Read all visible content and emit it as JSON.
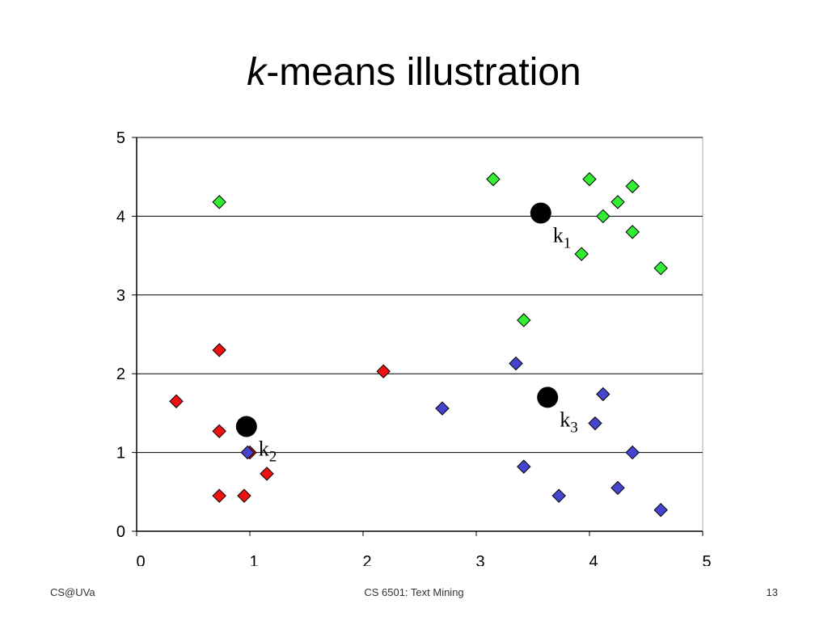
{
  "slide": {
    "title_italic": "k",
    "title_rest": "-means illustration",
    "footer_left": "CS@UVa",
    "footer_center": "CS 6501: Text Mining",
    "footer_right": "13"
  },
  "chart_data": {
    "type": "scatter",
    "xlim": [
      0,
      5
    ],
    "ylim": [
      0,
      5
    ],
    "x_ticks": [
      "0",
      "1",
      "2",
      "3",
      "4",
      "5"
    ],
    "y_ticks": [
      "0",
      "1",
      "2",
      "3",
      "4",
      "5"
    ],
    "grid": "horizontal",
    "series": [
      {
        "color": "#33ee33",
        "points": [
          [
            0.73,
            4.18
          ],
          [
            3.15,
            4.47
          ],
          [
            4.0,
            4.47
          ],
          [
            4.25,
            4.18
          ],
          [
            4.38,
            4.38
          ],
          [
            4.12,
            4.0
          ],
          [
            4.38,
            3.8
          ],
          [
            3.93,
            3.52
          ],
          [
            4.63,
            3.34
          ],
          [
            3.42,
            2.68
          ]
        ]
      },
      {
        "color": "#ee1111",
        "points": [
          [
            0.35,
            1.65
          ],
          [
            0.73,
            2.3
          ],
          [
            0.73,
            1.27
          ],
          [
            1.0,
            1.0
          ],
          [
            0.73,
            0.45
          ],
          [
            0.95,
            0.45
          ],
          [
            1.15,
            0.73
          ],
          [
            2.18,
            2.03
          ]
        ]
      },
      {
        "color": "#4444cc",
        "points": [
          [
            2.7,
            1.56
          ],
          [
            3.35,
            2.13
          ],
          [
            4.12,
            1.74
          ],
          [
            4.05,
            1.37
          ],
          [
            4.38,
            1.0
          ],
          [
            3.42,
            0.82
          ],
          [
            3.73,
            0.45
          ],
          [
            4.25,
            0.55
          ],
          [
            4.63,
            0.27
          ],
          [
            0.98,
            1.0
          ]
        ]
      }
    ],
    "centroids": [
      {
        "label": "k",
        "sub": "1",
        "x": 3.57,
        "y": 4.04
      },
      {
        "label": "k",
        "sub": "2",
        "x": 0.97,
        "y": 1.33
      },
      {
        "label": "k",
        "sub": "3",
        "x": 3.63,
        "y": 1.7
      }
    ]
  }
}
